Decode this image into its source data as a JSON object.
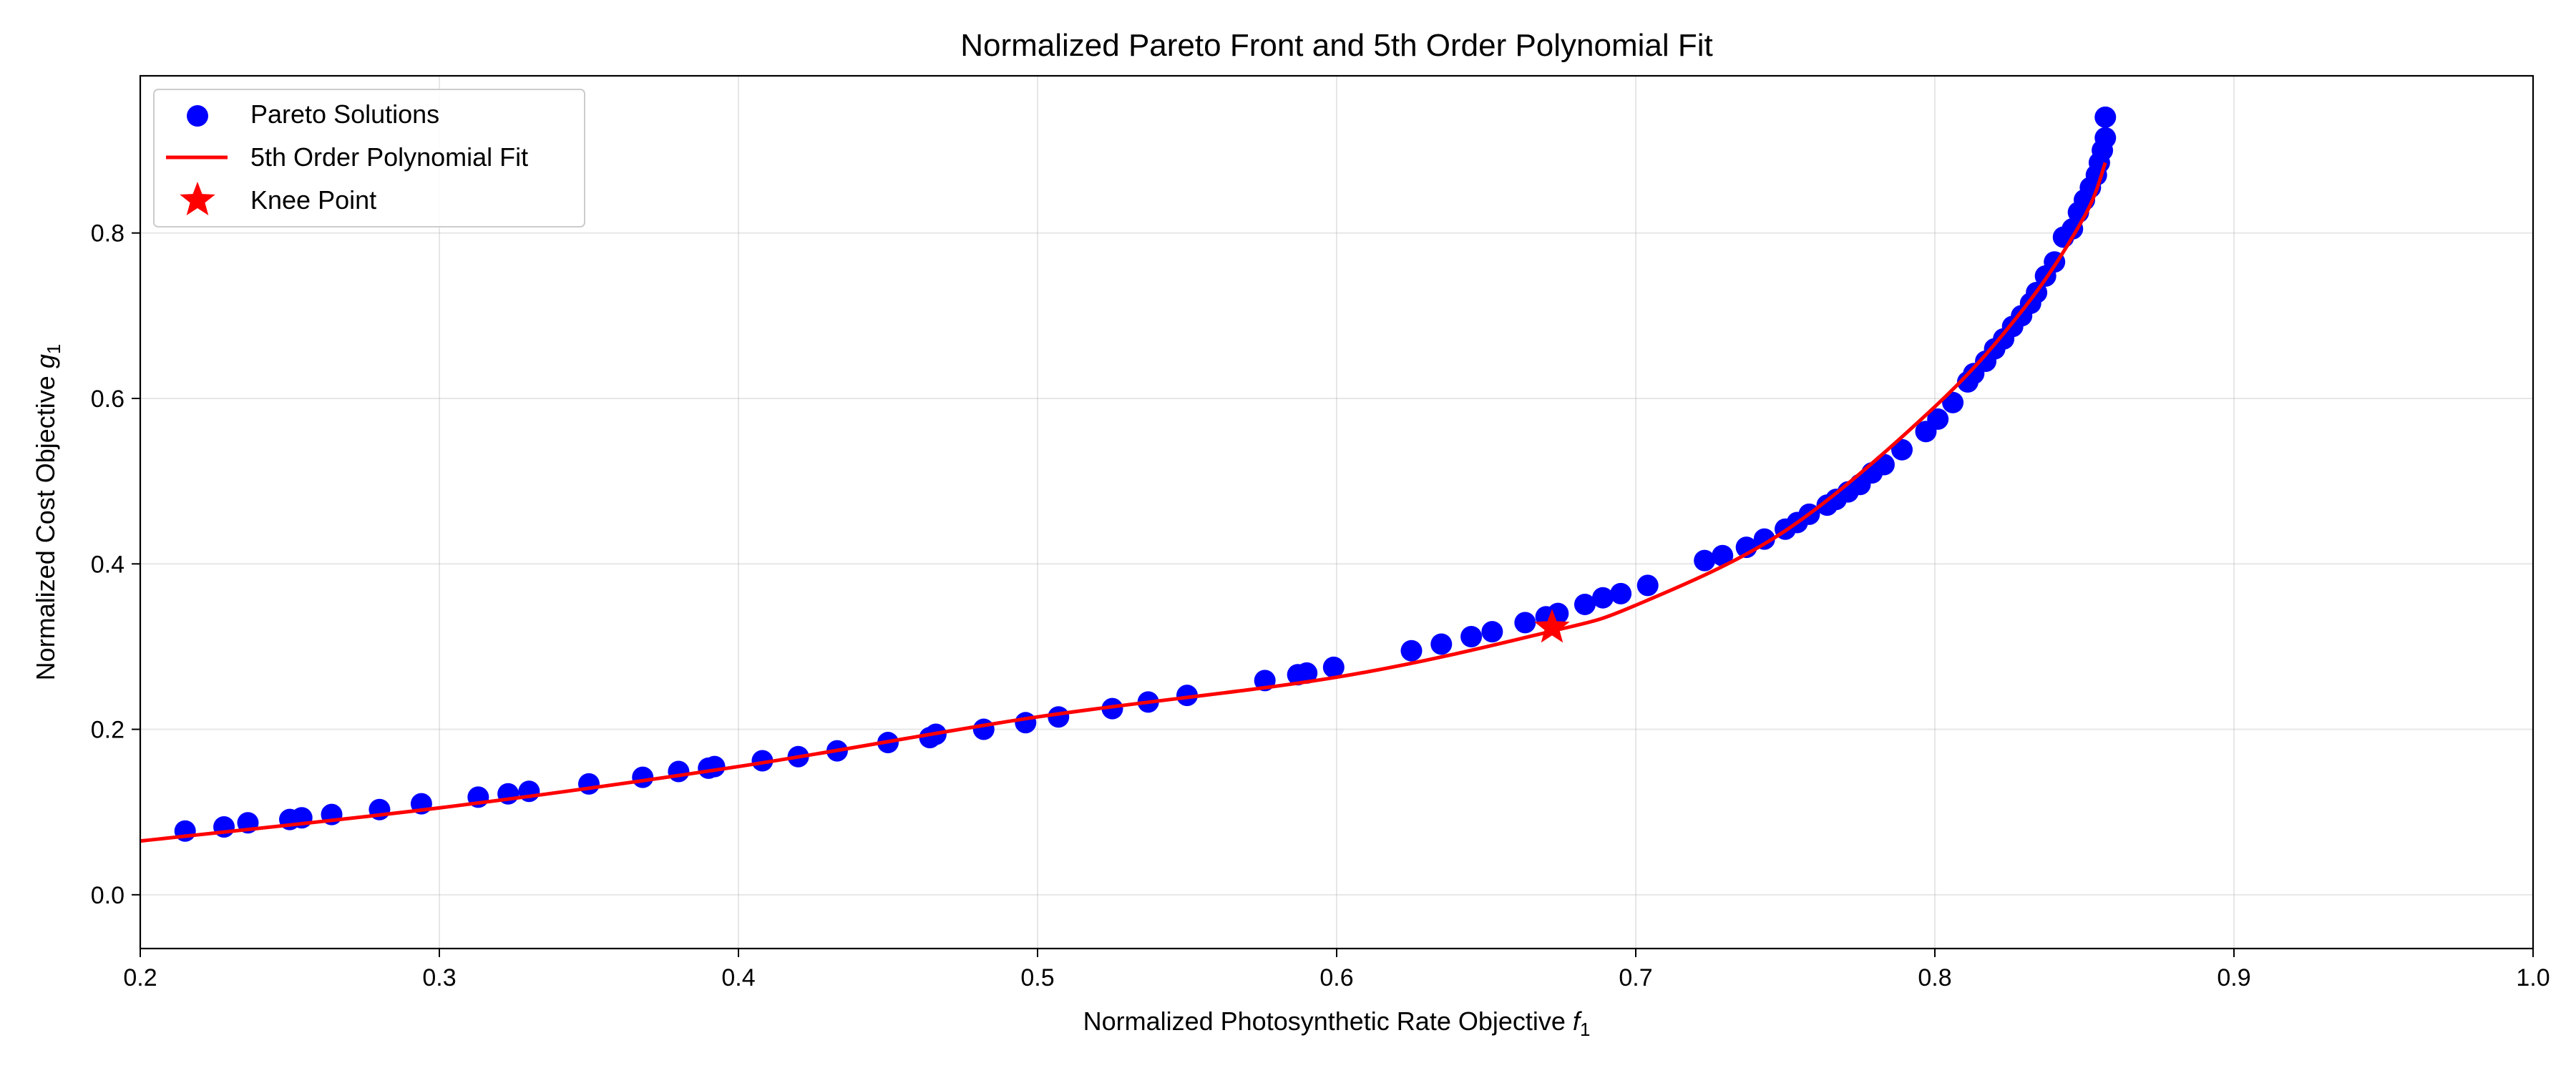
{
  "chart_data": {
    "type": "scatter",
    "title": "Normalized Pareto Front and 5th Order Polynomial Fit",
    "xlabel": {
      "main": "Normalized Photosynthetic Rate Objective ",
      "var": "f",
      "sub": "1"
    },
    "ylabel": {
      "main": "Normalized Cost Objective ",
      "var": "g",
      "sub": "1"
    },
    "xlim": [
      0.2,
      1.0
    ],
    "ylim": [
      -0.065,
      0.99
    ],
    "xticks": [
      0.2,
      0.3,
      0.4,
      0.5,
      0.6,
      0.7,
      0.8,
      0.9,
      1.0
    ],
    "xtick_labels": [
      "0.2",
      "0.3",
      "0.4",
      "0.5",
      "0.6",
      "0.7",
      "0.8",
      "0.9",
      "1.0"
    ],
    "yticks": [
      0.0,
      0.2,
      0.4,
      0.6,
      0.8
    ],
    "ytick_labels": [
      "0.0",
      "0.2",
      "0.4",
      "0.6",
      "0.8"
    ],
    "grid": true,
    "legend_position": "top-left",
    "series": [
      {
        "name": "Pareto Solutions",
        "kind": "scatter",
        "color": "#0000ff",
        "x": [
          0.215,
          0.228,
          0.236,
          0.25,
          0.254,
          0.264,
          0.28,
          0.294,
          0.313,
          0.323,
          0.33,
          0.35,
          0.368,
          0.38,
          0.39,
          0.392,
          0.408,
          0.42,
          0.433,
          0.45,
          0.464,
          0.466,
          0.482,
          0.496,
          0.507,
          0.525,
          0.537,
          0.55,
          0.576,
          0.587,
          0.59,
          0.599,
          0.625,
          0.635,
          0.645,
          0.652,
          0.663,
          0.67,
          0.674,
          0.683,
          0.689,
          0.695,
          0.704,
          0.723,
          0.729,
          0.737,
          0.743,
          0.75,
          0.754,
          0.758,
          0.764,
          0.767,
          0.771,
          0.775,
          0.779,
          0.783,
          0.789,
          0.797,
          0.801,
          0.806,
          0.811,
          0.813,
          0.817,
          0.82,
          0.823,
          0.826,
          0.829,
          0.832,
          0.834,
          0.837,
          0.84,
          0.843,
          0.846,
          0.848,
          0.85,
          0.852,
          0.854,
          0.855,
          0.856,
          0.857,
          0.857
        ],
        "y": [
          0.077,
          0.082,
          0.087,
          0.091,
          0.093,
          0.097,
          0.103,
          0.11,
          0.118,
          0.122,
          0.125,
          0.134,
          0.142,
          0.149,
          0.153,
          0.155,
          0.162,
          0.167,
          0.174,
          0.184,
          0.19,
          0.194,
          0.2,
          0.208,
          0.215,
          0.225,
          0.233,
          0.241,
          0.259,
          0.266,
          0.268,
          0.275,
          0.295,
          0.303,
          0.312,
          0.318,
          0.329,
          0.336,
          0.34,
          0.351,
          0.359,
          0.364,
          0.374,
          0.404,
          0.41,
          0.42,
          0.43,
          0.442,
          0.45,
          0.46,
          0.471,
          0.478,
          0.487,
          0.496,
          0.51,
          0.52,
          0.538,
          0.56,
          0.575,
          0.595,
          0.62,
          0.63,
          0.645,
          0.66,
          0.672,
          0.687,
          0.7,
          0.715,
          0.728,
          0.748,
          0.765,
          0.795,
          0.805,
          0.825,
          0.84,
          0.855,
          0.87,
          0.885,
          0.9,
          0.915,
          0.94
        ]
      },
      {
        "name": "5th Order Polynomial Fit",
        "kind": "line",
        "color": "#ff0000",
        "x": [
          0.2,
          0.3,
          0.4,
          0.5,
          0.6,
          0.67,
          0.7,
          0.75,
          0.8,
          0.83,
          0.85,
          0.857
        ],
        "y": [
          0.065,
          0.105,
          0.155,
          0.215,
          0.263,
          0.317,
          0.35,
          0.44,
          0.59,
          0.71,
          0.82,
          0.885
        ]
      },
      {
        "name": "Knee Point",
        "kind": "marker",
        "color": "#ff0000",
        "x": [
          0.672
        ],
        "y": [
          0.323
        ]
      }
    ]
  }
}
